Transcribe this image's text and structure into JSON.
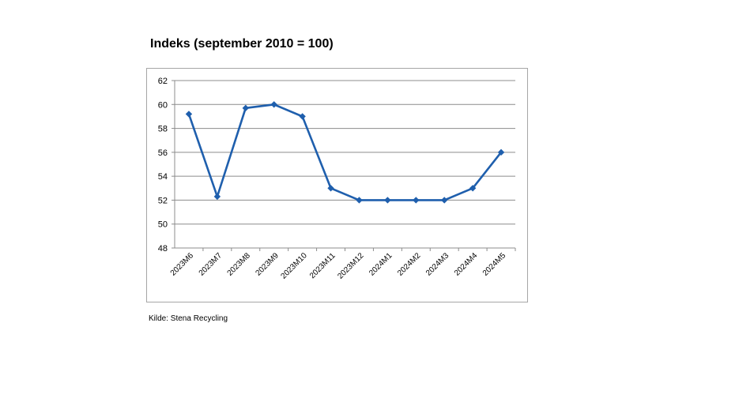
{
  "title": "Indeks (september 2010 = 100)",
  "source": "Kilde: Stena Recycling",
  "chart_data": {
    "type": "line",
    "title": "Indeks (september 2010 = 100)",
    "categories": [
      "2023M6",
      "2023M7",
      "2023M8",
      "2023M9",
      "2023M10",
      "2023M11",
      "2023M12",
      "2024M1",
      "2024M2",
      "2024M3",
      "2024M4",
      "2024M5"
    ],
    "values": [
      59.2,
      52.3,
      59.7,
      60.0,
      59.0,
      53.0,
      52.0,
      52.0,
      52.0,
      52.0,
      53.0,
      56.0
    ],
    "ylim": [
      48,
      62
    ],
    "yticks": [
      48,
      50,
      52,
      54,
      56,
      58,
      60,
      62
    ],
    "grid": true,
    "color": "#1f5fad"
  }
}
